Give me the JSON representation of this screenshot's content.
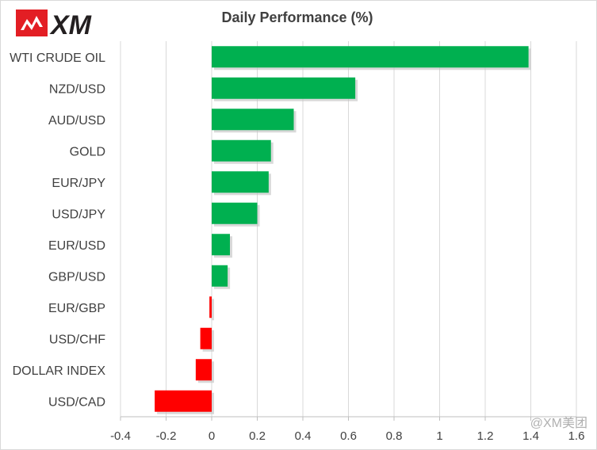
{
  "chart_data": {
    "type": "bar",
    "orientation": "horizontal",
    "title": "Daily Performance (%)",
    "categories": [
      "WTI CRUDE OIL",
      "NZD/USD",
      "AUD/USD",
      "GOLD",
      "EUR/JPY",
      "USD/JPY",
      "EUR/USD",
      "GBP/USD",
      "EUR/GBP",
      "USD/CHF",
      "DOLLAR INDEX",
      "USD/CAD"
    ],
    "values": [
      1.39,
      0.63,
      0.36,
      0.26,
      0.25,
      0.2,
      0.08,
      0.07,
      -0.01,
      -0.05,
      -0.07,
      -0.25
    ],
    "xlim": [
      -0.4,
      1.6
    ],
    "xticks": [
      -0.4,
      -0.2,
      0,
      0.2,
      0.4,
      0.6,
      0.8,
      1,
      1.2,
      1.4,
      1.6
    ],
    "grid": true,
    "colors": {
      "positive": "#00b050",
      "negative": "#ff0000",
      "grid": "#d9d9d9"
    }
  },
  "logo": {
    "text": "XM",
    "colors": {
      "red": "#e31e24",
      "dark": "#231f20"
    }
  },
  "watermark": "@XM美团"
}
